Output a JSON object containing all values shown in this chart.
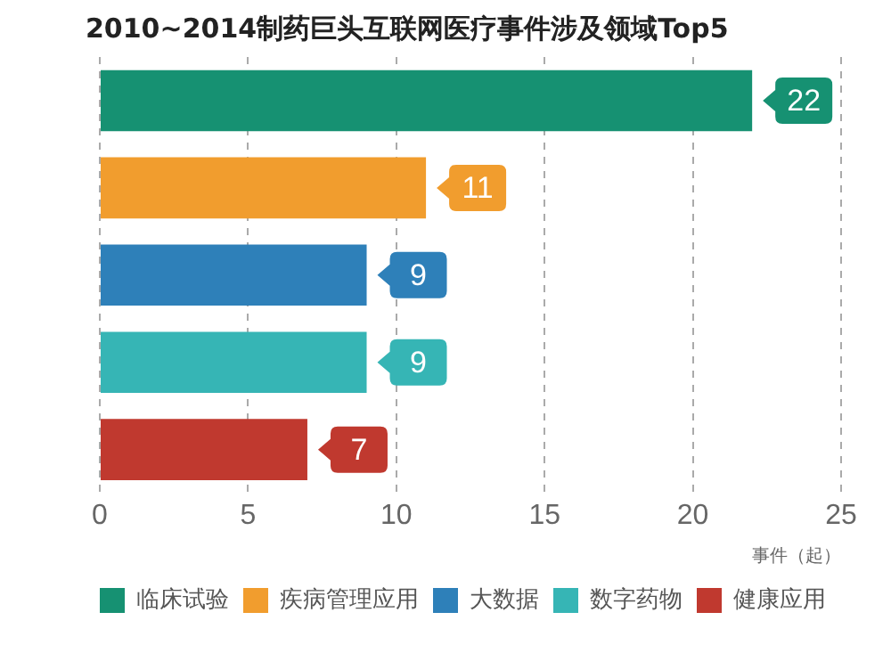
{
  "chart_data": {
    "type": "bar",
    "orientation": "horizontal",
    "stacked": true,
    "title": "2010~2014制药巨头互联网医疗事件涉及领域Top5",
    "xlabel": "事件（起）",
    "categories": [
      null,
      null,
      null,
      null,
      null
    ],
    "series": [
      {
        "name": "临床试验",
        "color": "#169172",
        "values": [
          22,
          null,
          null,
          null,
          null
        ]
      },
      {
        "name": "疾病管理应用",
        "color": "#f19d2e",
        "values": [
          null,
          11,
          null,
          null,
          null
        ]
      },
      {
        "name": "大数据",
        "color": "#2e80b9",
        "values": [
          null,
          null,
          9,
          null,
          null
        ]
      },
      {
        "name": "数字药物",
        "color": "#36b5b5",
        "values": [
          null,
          null,
          null,
          9,
          null
        ]
      },
      {
        "name": "健康应用",
        "color": "#c0392f",
        "values": [
          null,
          null,
          null,
          null,
          7
        ]
      }
    ],
    "xlim": [
      0,
      25
    ],
    "xticks": [
      0,
      5,
      10,
      15,
      20,
      25
    ],
    "grid": "x",
    "legend": "bottom",
    "data_labels": true
  }
}
